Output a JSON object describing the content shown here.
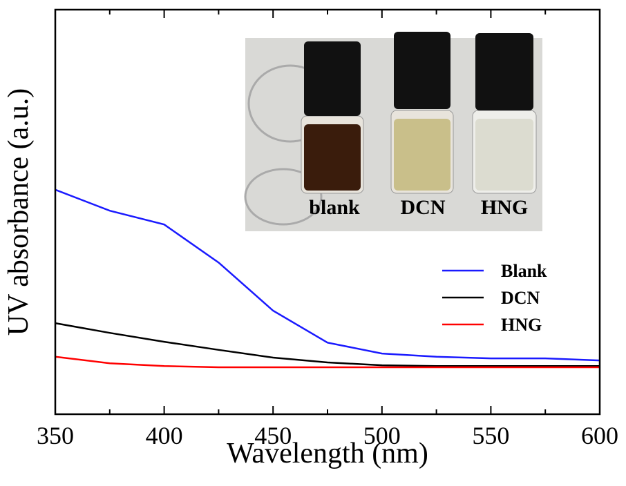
{
  "chart_data": {
    "type": "line",
    "xlabel": "Wavelength (nm)",
    "ylabel": "UV absorbance (a.u.)",
    "x": [
      350,
      375,
      400,
      425,
      450,
      475,
      500,
      525,
      550,
      575,
      600
    ],
    "series": [
      {
        "name": "Blank",
        "color": "#1a1aff",
        "values": [
          0.555,
          0.503,
          0.469,
          0.375,
          0.256,
          0.177,
          0.15,
          0.142,
          0.138,
          0.138,
          0.133
        ]
      },
      {
        "name": "DCN",
        "color": "#000000",
        "values": [
          0.225,
          0.201,
          0.179,
          0.159,
          0.14,
          0.128,
          0.121,
          0.119,
          0.119,
          0.119,
          0.119
        ]
      },
      {
        "name": "HNG",
        "color": "#ff0000",
        "values": [
          0.142,
          0.126,
          0.119,
          0.116,
          0.116,
          0.116,
          0.116,
          0.116,
          0.116,
          0.116,
          0.116
        ]
      }
    ],
    "xlim": [
      350,
      600
    ],
    "ylim": [
      0,
      1
    ],
    "xticks": [
      350,
      400,
      450,
      500,
      550,
      600
    ],
    "xminor_ticks": [
      375,
      425,
      475,
      525,
      575
    ],
    "inset_photo": {
      "labels": [
        "blank",
        "DCN",
        "HNG"
      ]
    }
  }
}
